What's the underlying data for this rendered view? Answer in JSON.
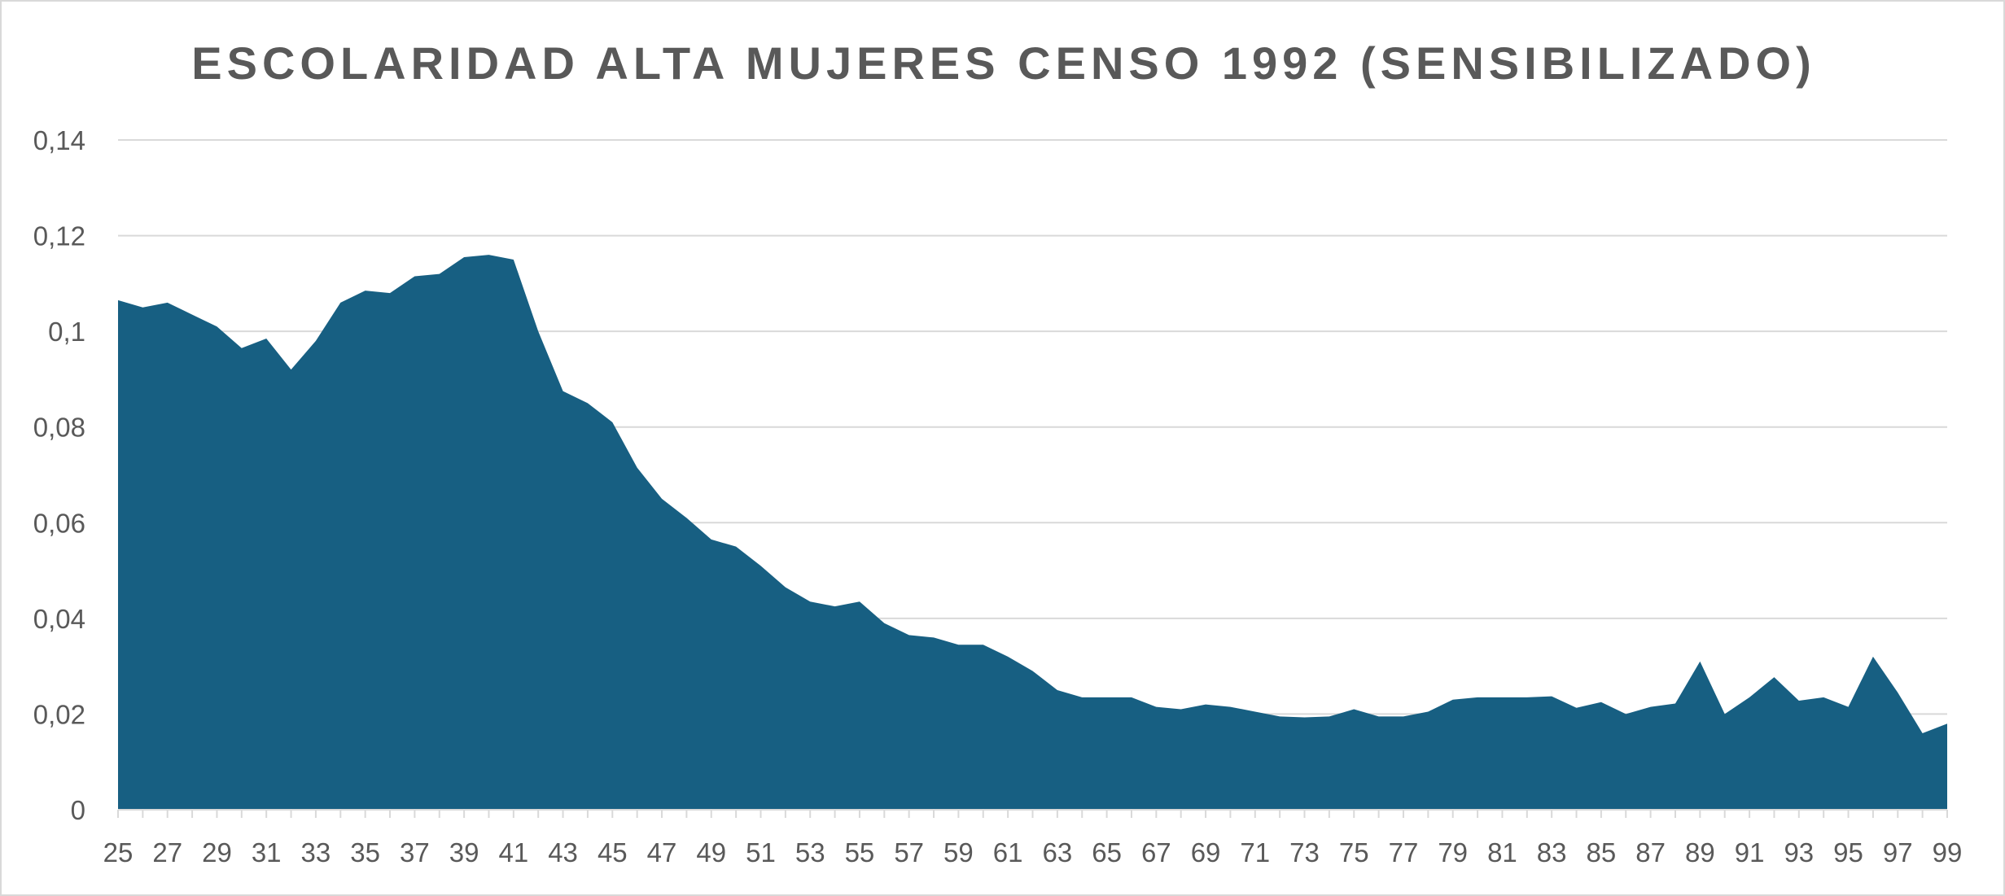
{
  "chart_data": {
    "type": "area",
    "title": "ESCOLARIDAD ALTA MUJERES CENSO 1992 (SENSIBILIZADO)",
    "xlabel": "",
    "ylabel": "",
    "ylim": [
      0,
      0.14
    ],
    "ytick_values": [
      0,
      0.02,
      0.04,
      0.06,
      0.08,
      0.1,
      0.12,
      0.14
    ],
    "ytick_labels": [
      "0",
      "0,02",
      "0,04",
      "0,06",
      "0,08",
      "0,1",
      "0,12",
      "0,14"
    ],
    "grid": true,
    "legend": "none",
    "color": "#175f82",
    "x_label_step": 2,
    "x": [
      25,
      26,
      27,
      28,
      29,
      30,
      31,
      32,
      33,
      34,
      35,
      36,
      37,
      38,
      39,
      40,
      41,
      42,
      43,
      44,
      45,
      46,
      47,
      48,
      49,
      50,
      51,
      52,
      53,
      54,
      55,
      56,
      57,
      58,
      59,
      60,
      61,
      62,
      63,
      64,
      65,
      66,
      67,
      68,
      69,
      70,
      71,
      72,
      73,
      74,
      75,
      76,
      77,
      78,
      79,
      80,
      81,
      82,
      83,
      84,
      85,
      86,
      87,
      88,
      89,
      90,
      91,
      92,
      93,
      94,
      95,
      96,
      97,
      98,
      99
    ],
    "values": [
      0.1065,
      0.105,
      0.106,
      0.1035,
      0.101,
      0.0965,
      0.0985,
      0.092,
      0.098,
      0.106,
      0.1085,
      0.108,
      0.1115,
      0.112,
      0.1155,
      0.116,
      0.115,
      0.1,
      0.0875,
      0.085,
      0.081,
      0.0715,
      0.065,
      0.061,
      0.0565,
      0.055,
      0.051,
      0.0465,
      0.0435,
      0.0425,
      0.0435,
      0.039,
      0.0365,
      0.036,
      0.0345,
      0.0345,
      0.032,
      0.029,
      0.025,
      0.0235,
      0.0235,
      0.0235,
      0.0215,
      0.021,
      0.022,
      0.0215,
      0.0205,
      0.0195,
      0.0193,
      0.0195,
      0.021,
      0.0195,
      0.0195,
      0.0205,
      0.023,
      0.0235,
      0.0235,
      0.0235,
      0.0237,
      0.0213,
      0.0225,
      0.02,
      0.0215,
      0.0222,
      0.031,
      0.02,
      0.0235,
      0.0277,
      0.0228,
      0.0235,
      0.0215,
      0.032,
      0.0245,
      0.016,
      0.018
    ]
  }
}
